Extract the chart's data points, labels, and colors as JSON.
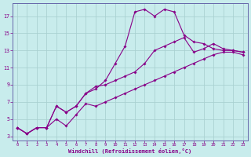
{
  "xlabel": "Windchill (Refroidissement éolien,°C)",
  "background_color": "#c8ecec",
  "grid_color": "#a8d0d0",
  "line_color": "#880088",
  "axis_color": "#6666aa",
  "x": [
    0,
    1,
    2,
    3,
    4,
    5,
    6,
    7,
    8,
    9,
    10,
    11,
    12,
    13,
    14,
    15,
    16,
    17,
    18,
    19,
    20,
    21,
    22,
    23
  ],
  "line_peak": [
    4.0,
    3.3,
    4.0,
    4.0,
    6.5,
    5.8,
    6.5,
    8.0,
    8.5,
    9.5,
    11.5,
    13.5,
    17.5,
    17.8,
    17.0,
    17.8,
    17.5,
    14.8,
    14.0,
    13.8,
    13.2,
    13.0,
    13.0,
    12.8
  ],
  "line_upper": [
    4.0,
    3.3,
    4.0,
    4.0,
    6.5,
    5.8,
    6.5,
    8.0,
    8.8,
    9.0,
    9.5,
    10.0,
    10.5,
    11.5,
    13.0,
    13.5,
    14.0,
    14.5,
    12.8,
    13.2,
    13.8,
    13.2,
    13.0,
    12.8
  ],
  "line_lower": [
    4.0,
    3.3,
    4.0,
    4.0,
    5.0,
    4.2,
    5.5,
    6.8,
    6.5,
    7.0,
    7.5,
    8.0,
    8.5,
    9.0,
    9.5,
    10.0,
    10.5,
    11.0,
    11.5,
    12.0,
    12.5,
    12.8,
    12.8,
    12.5
  ],
  "ylim": [
    2.5,
    18.5
  ],
  "xlim": [
    -0.5,
    23.5
  ],
  "yticks": [
    3,
    5,
    7,
    9,
    11,
    13,
    15,
    17
  ],
  "xticks": [
    0,
    1,
    2,
    3,
    4,
    5,
    6,
    7,
    8,
    9,
    10,
    11,
    12,
    13,
    14,
    15,
    16,
    17,
    18,
    19,
    20,
    21,
    22,
    23
  ]
}
